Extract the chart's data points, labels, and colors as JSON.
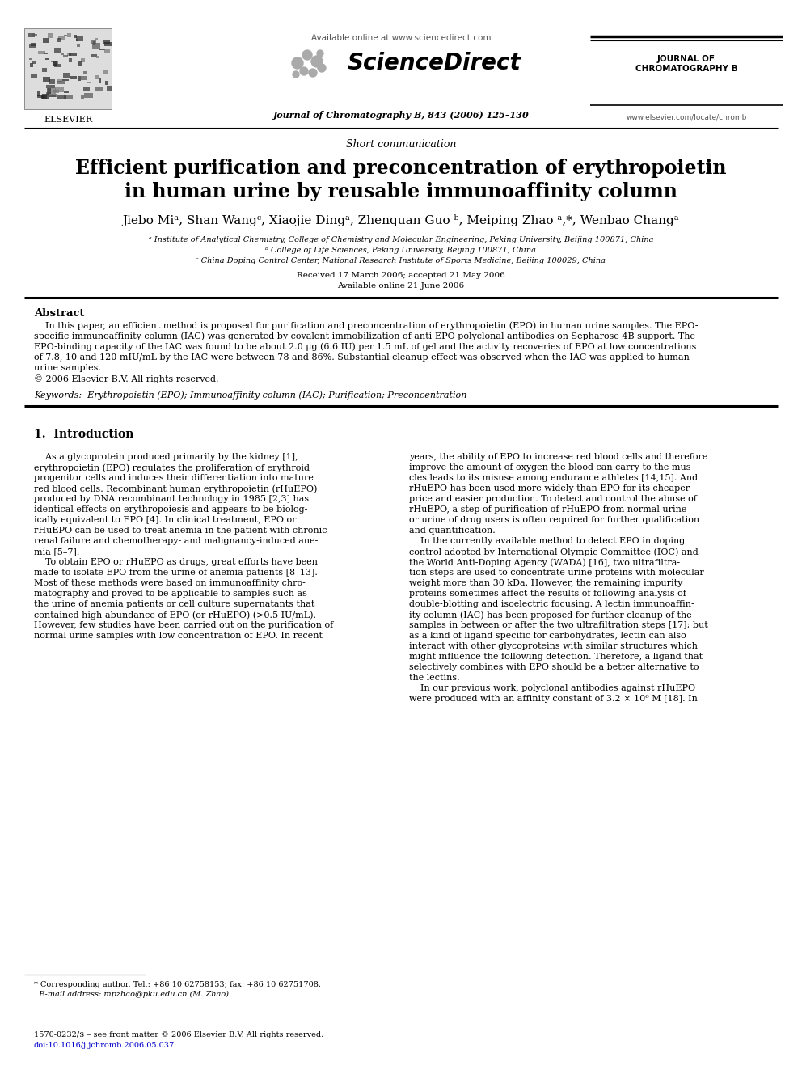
{
  "title_line1": "Efficient purification and preconcentration of erythropoietin",
  "title_line2": "in human urine by reusable immunoaffinity column",
  "short_comm": "Short communication",
  "authors": "Jiebo Miᵃ, Shan Wangᶜ, Xiaojie Dingᵃ, Zhenquan Guo ᵇ, Meiping Zhao ᵃ,*, Wenbao Changᵃ",
  "affil_a": "ᵃ Institute of Analytical Chemistry, College of Chemistry and Molecular Engineering, Peking University, Beijing 100871, China",
  "affil_b": "ᵇ College of Life Sciences, Peking University, Beijing 100871, China",
  "affil_c": "ᶜ China Doping Control Center, National Research Institute of Sports Medicine, Beijing 100029, China",
  "received": "Received 17 March 2006; accepted 21 May 2006",
  "available": "Available online 21 June 2006",
  "journal_top": "Journal of Chromatography B, 843 (2006) 125–130",
  "journal_name_1": "JOURNAL OF",
  "journal_name_2": "CHROMATOGRAPHY B",
  "journal_url": "www.elsevier.com/locate/chromb",
  "sciencedirect_text": "Available online at www.sciencedirect.com",
  "sciencedirect_logo": "ScienceDirect",
  "elsevier": "ELSEVIER",
  "abstract_title": "Abstract",
  "abs_line1": "    In this paper, an efficient method is proposed for purification and preconcentration of erythropoietin (EPO) in human urine samples. The EPO-",
  "abs_line2": "specific immunoaffinity column (IAC) was generated by covalent immobilization of anti-EPO polyclonal antibodies on Sepharose 4B support. The",
  "abs_line3": "EPO-binding capacity of the IAC was found to be about 2.0 μg (6.6 IU) per 1.5 mL of gel and the activity recoveries of EPO at low concentrations",
  "abs_line4": "of 7.8, 10 and 120 mIU/mL by the IAC were between 78 and 86%. Substantial cleanup effect was observed when the IAC was applied to human",
  "abs_line5": "urine samples.",
  "abs_copy": "© 2006 Elsevier B.V. All rights reserved.",
  "keywords": "Keywords:  Erythropoietin (EPO); Immunoaffinity column (IAC); Purification; Preconcentration",
  "section1_title": "1.  Introduction",
  "left_col": [
    "    As a glycoprotein produced primarily by the kidney [1],",
    "erythropoietin (EPO) regulates the proliferation of erythroid",
    "progenitor cells and induces their differentiation into mature",
    "red blood cells. Recombinant human erythropoietin (rHuEPO)",
    "produced by DNA recombinant technology in 1985 [2,3] has",
    "identical effects on erythropoiesis and appears to be biolog-",
    "ically equivalent to EPO [4]. In clinical treatment, EPO or",
    "rHuEPO can be used to treat anemia in the patient with chronic",
    "renal failure and chemotherapy- and malignancy-induced ane-",
    "mia [5–7].",
    "    To obtain EPO or rHuEPO as drugs, great efforts have been",
    "made to isolate EPO from the urine of anemia patients [8–13].",
    "Most of these methods were based on immunoaffinity chro-",
    "matography and proved to be applicable to samples such as",
    "the urine of anemia patients or cell culture supernatants that",
    "contained high-abundance of EPO (or rHuEPO) (>0.5 IU/mL).",
    "However, few studies have been carried out on the purification of",
    "normal urine samples with low concentration of EPO. In recent"
  ],
  "right_col": [
    "years, the ability of EPO to increase red blood cells and therefore",
    "improve the amount of oxygen the blood can carry to the mus-",
    "cles leads to its misuse among endurance athletes [14,15]. And",
    "rHuEPO has been used more widely than EPO for its cheaper",
    "price and easier production. To detect and control the abuse of",
    "rHuEPO, a step of purification of rHuEPO from normal urine",
    "or urine of drug users is often required for further qualification",
    "and quantification.",
    "    In the currently available method to detect EPO in doping",
    "control adopted by International Olympic Committee (IOC) and",
    "the World Anti-Doping Agency (WADA) [16], two ultrafiltra-",
    "tion steps are used to concentrate urine proteins with molecular",
    "weight more than 30 kDa. However, the remaining impurity",
    "proteins sometimes affect the results of following analysis of",
    "double-blotting and isoelectric focusing. A lectin immunoaffin-",
    "ity column (IAC) has been proposed for further cleanup of the",
    "samples in between or after the two ultrafiltration steps [17]; but",
    "as a kind of ligand specific for carbohydrates, lectin can also",
    "interact with other glycoproteins with similar structures which",
    "might influence the following detection. Therefore, a ligand that",
    "selectively combines with EPO should be a better alternative to",
    "the lectins.",
    "    In our previous work, polyclonal antibodies against rHuEPO",
    "were produced with an affinity constant of 3.2 × 10⁶ M [18]. In"
  ],
  "footnote1": "* Corresponding author. Tel.: +86 10 62758153; fax: +86 10 62751708.",
  "footnote2": "  E-mail address: mpzhao@pku.edu.cn (M. Zhao).",
  "footer1": "1570-0232/$ – see front matter © 2006 Elsevier B.V. All rights reserved.",
  "footer2": "doi:10.1016/j.jchromb.2006.05.037",
  "bg_color": "#ffffff"
}
